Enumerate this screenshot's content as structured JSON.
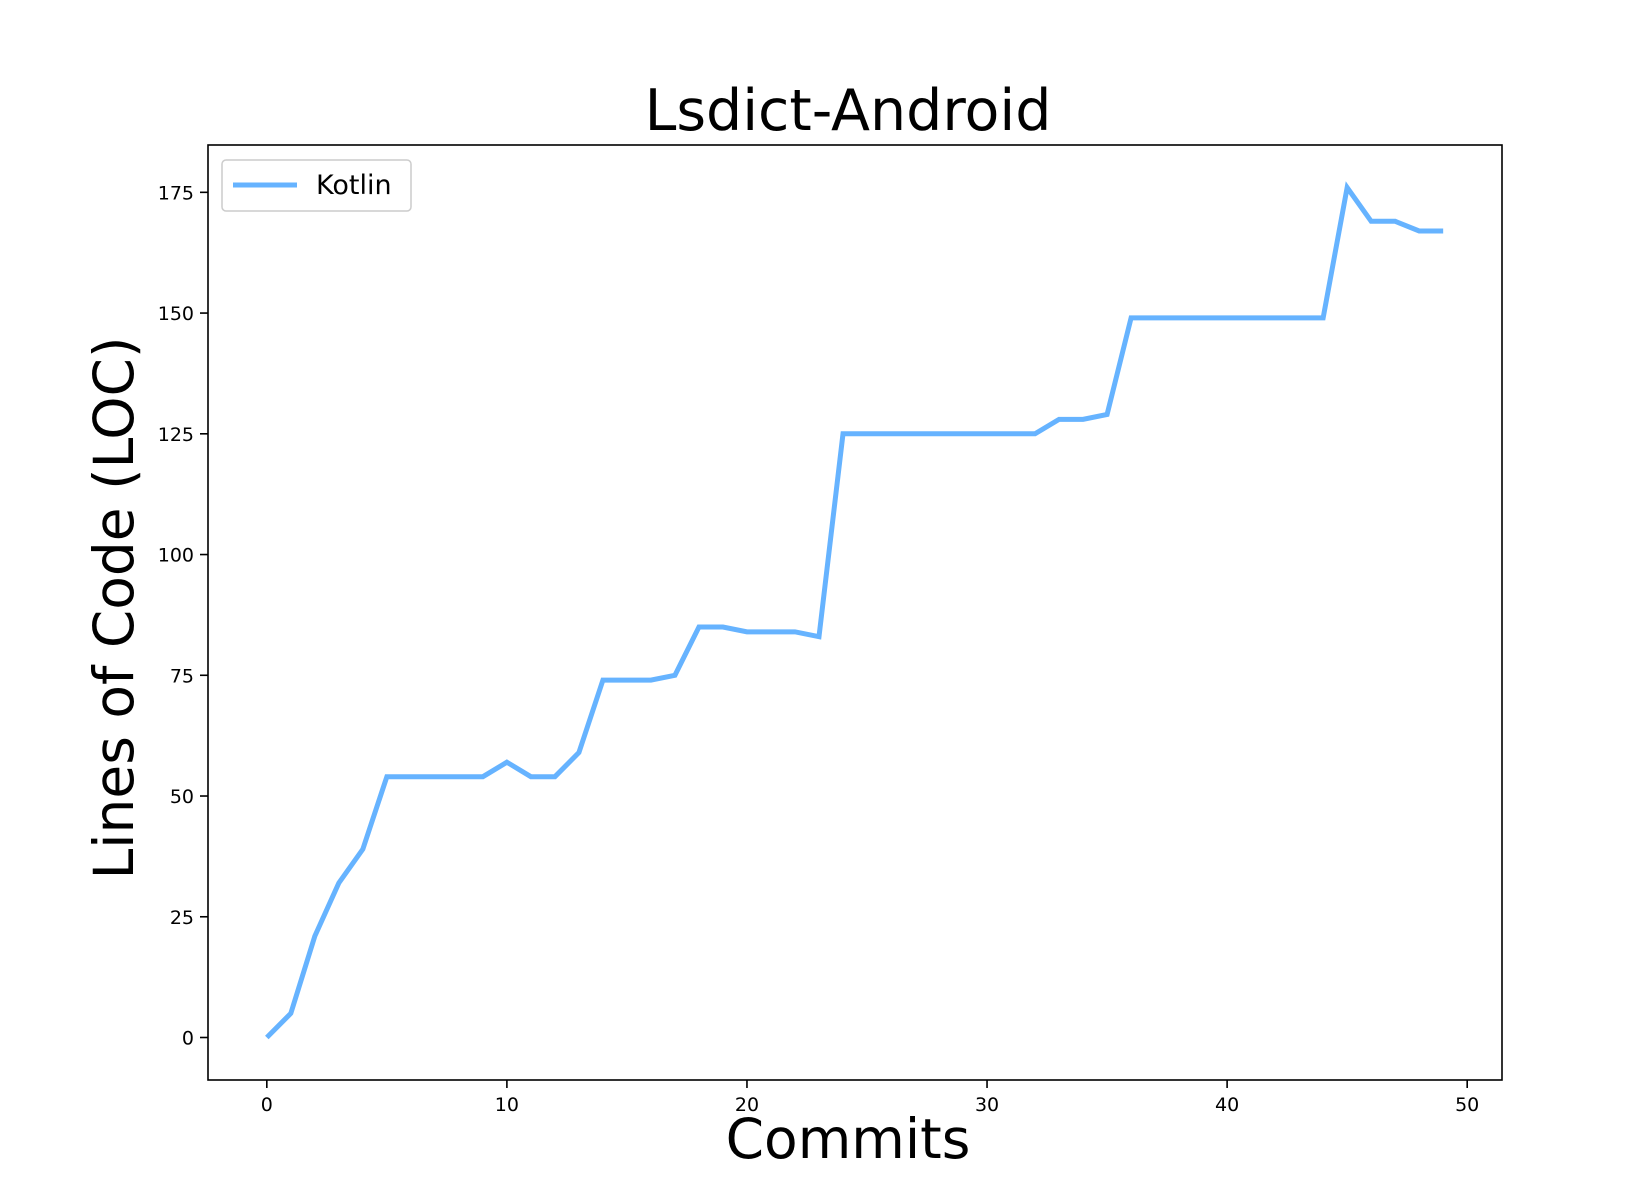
{
  "chart_data": {
    "type": "line",
    "title": "Lsdict-Android",
    "xlabel": "Commits",
    "ylabel": "Lines of Code (LOC)",
    "xlim": [
      -2.45,
      51.45
    ],
    "ylim": [
      -8.8,
      184.8
    ],
    "xticks": [
      0,
      10,
      20,
      30,
      40,
      50
    ],
    "yticks": [
      0,
      25,
      50,
      75,
      100,
      125,
      150,
      175
    ],
    "grid": false,
    "legend": {
      "position": "top-left",
      "entries": [
        "Kotlin"
      ]
    },
    "series": [
      {
        "name": "Kotlin",
        "color": "#66b3ff",
        "x": [
          0,
          1,
          2,
          3,
          4,
          5,
          6,
          7,
          8,
          9,
          10,
          11,
          12,
          13,
          14,
          15,
          16,
          17,
          18,
          19,
          20,
          21,
          22,
          23,
          24,
          25,
          26,
          27,
          28,
          29,
          30,
          31,
          32,
          33,
          34,
          35,
          36,
          37,
          38,
          39,
          40,
          41,
          42,
          43,
          44,
          45,
          46,
          47,
          48,
          49
        ],
        "values": [
          0,
          5,
          21,
          32,
          39,
          54,
          54,
          54,
          54,
          54,
          57,
          54,
          54,
          59,
          74,
          74,
          74,
          75,
          85,
          85,
          84,
          84,
          84,
          83,
          125,
          125,
          125,
          125,
          125,
          125,
          125,
          125,
          125,
          128,
          128,
          129,
          149,
          149,
          149,
          149,
          149,
          149,
          149,
          149,
          149,
          176,
          169,
          169,
          167,
          167
        ]
      }
    ]
  }
}
